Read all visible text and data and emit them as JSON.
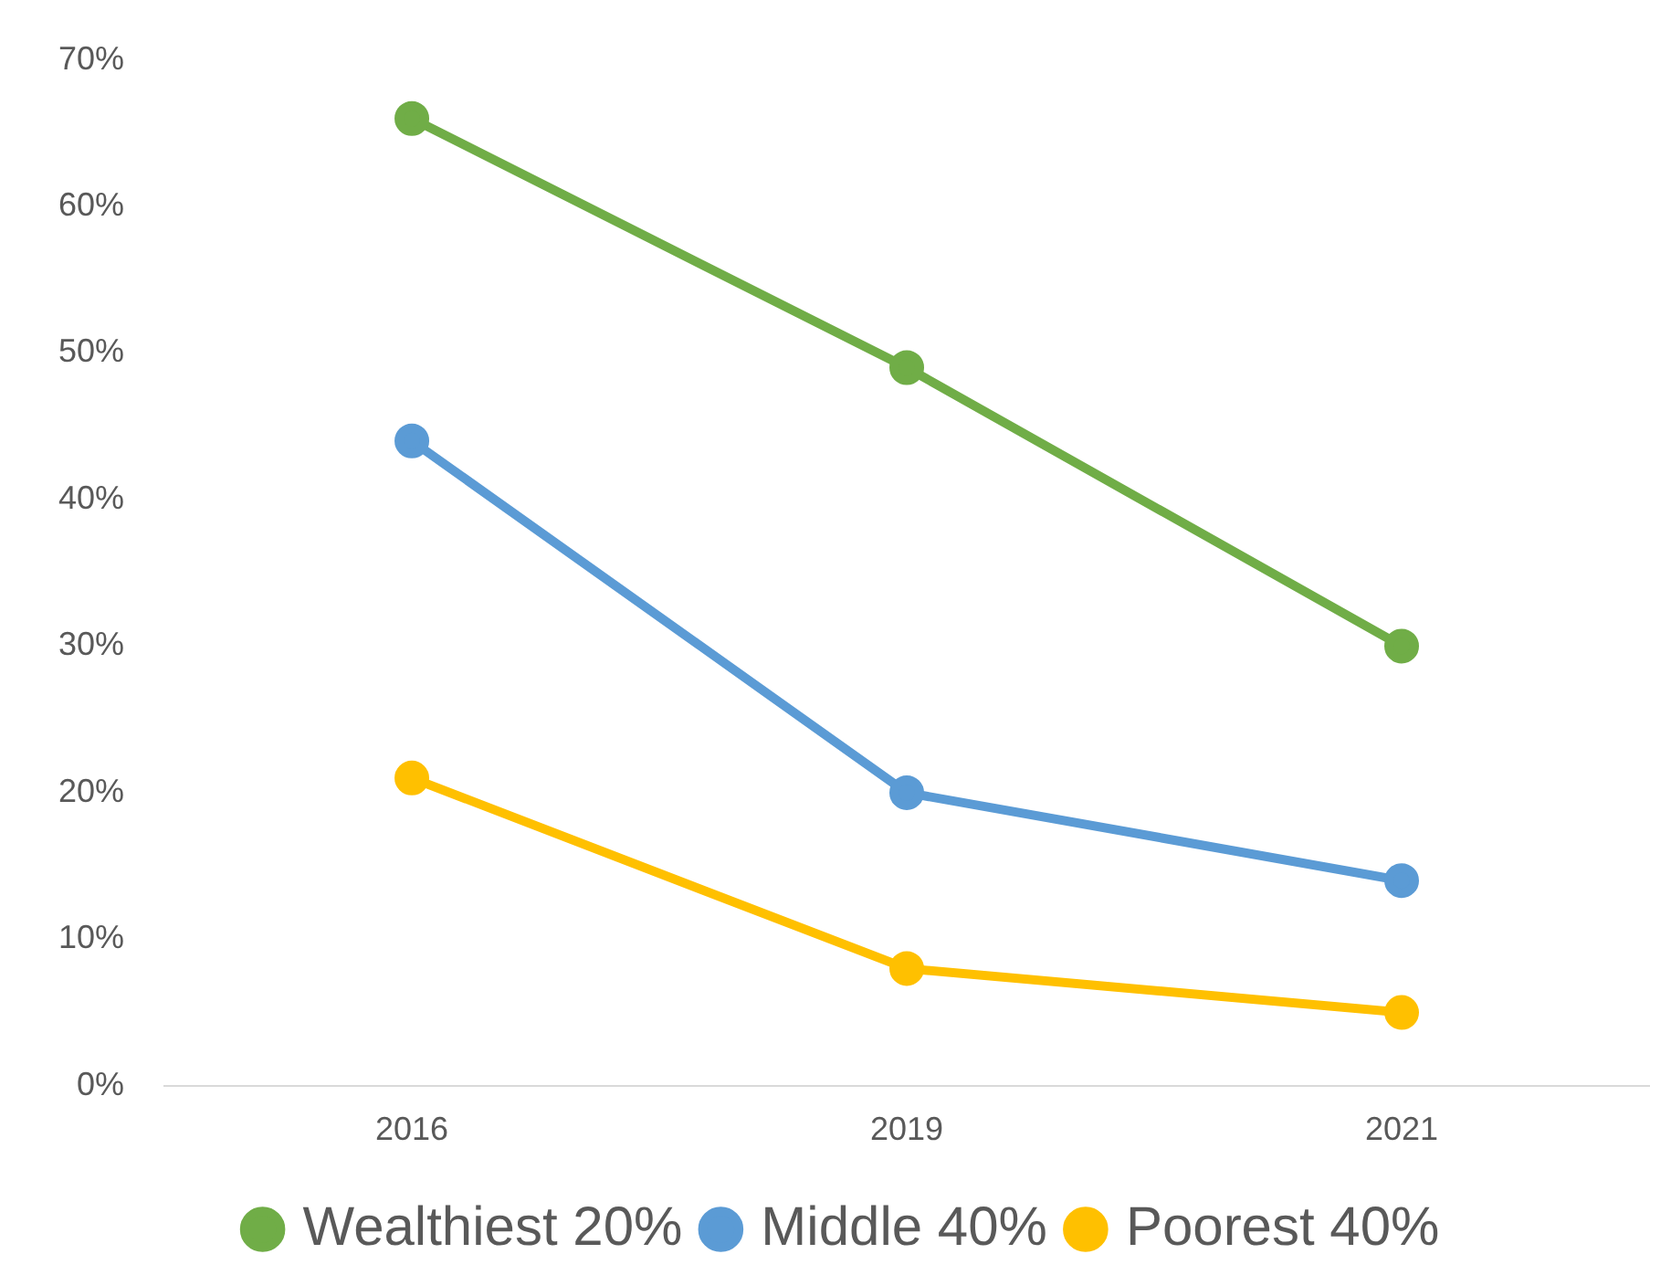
{
  "chart_data": {
    "type": "line",
    "categories": [
      "2016",
      "2019",
      "2021"
    ],
    "series": [
      {
        "name": "Wealthiest 20%",
        "color": "#70ad47",
        "values": [
          66,
          49,
          30
        ]
      },
      {
        "name": "Middle 40%",
        "color": "#5b9bd5",
        "values": [
          44,
          20,
          14
        ]
      },
      {
        "name": "Poorest 40%",
        "color": "#ffc000",
        "values": [
          21,
          8,
          5
        ]
      }
    ],
    "ylim": [
      0,
      70
    ],
    "yticks": [
      {
        "value": 0,
        "label": "0%"
      },
      {
        "value": 10,
        "label": "10%"
      },
      {
        "value": 20,
        "label": "20%"
      },
      {
        "value": 30,
        "label": "30%"
      },
      {
        "value": 40,
        "label": "40%"
      },
      {
        "value": 50,
        "label": "50%"
      },
      {
        "value": 60,
        "label": "60%"
      },
      {
        "value": 70,
        "label": "70%"
      }
    ],
    "grid": false,
    "legend": "bottom",
    "marker": "circle",
    "line_style": "solid"
  }
}
